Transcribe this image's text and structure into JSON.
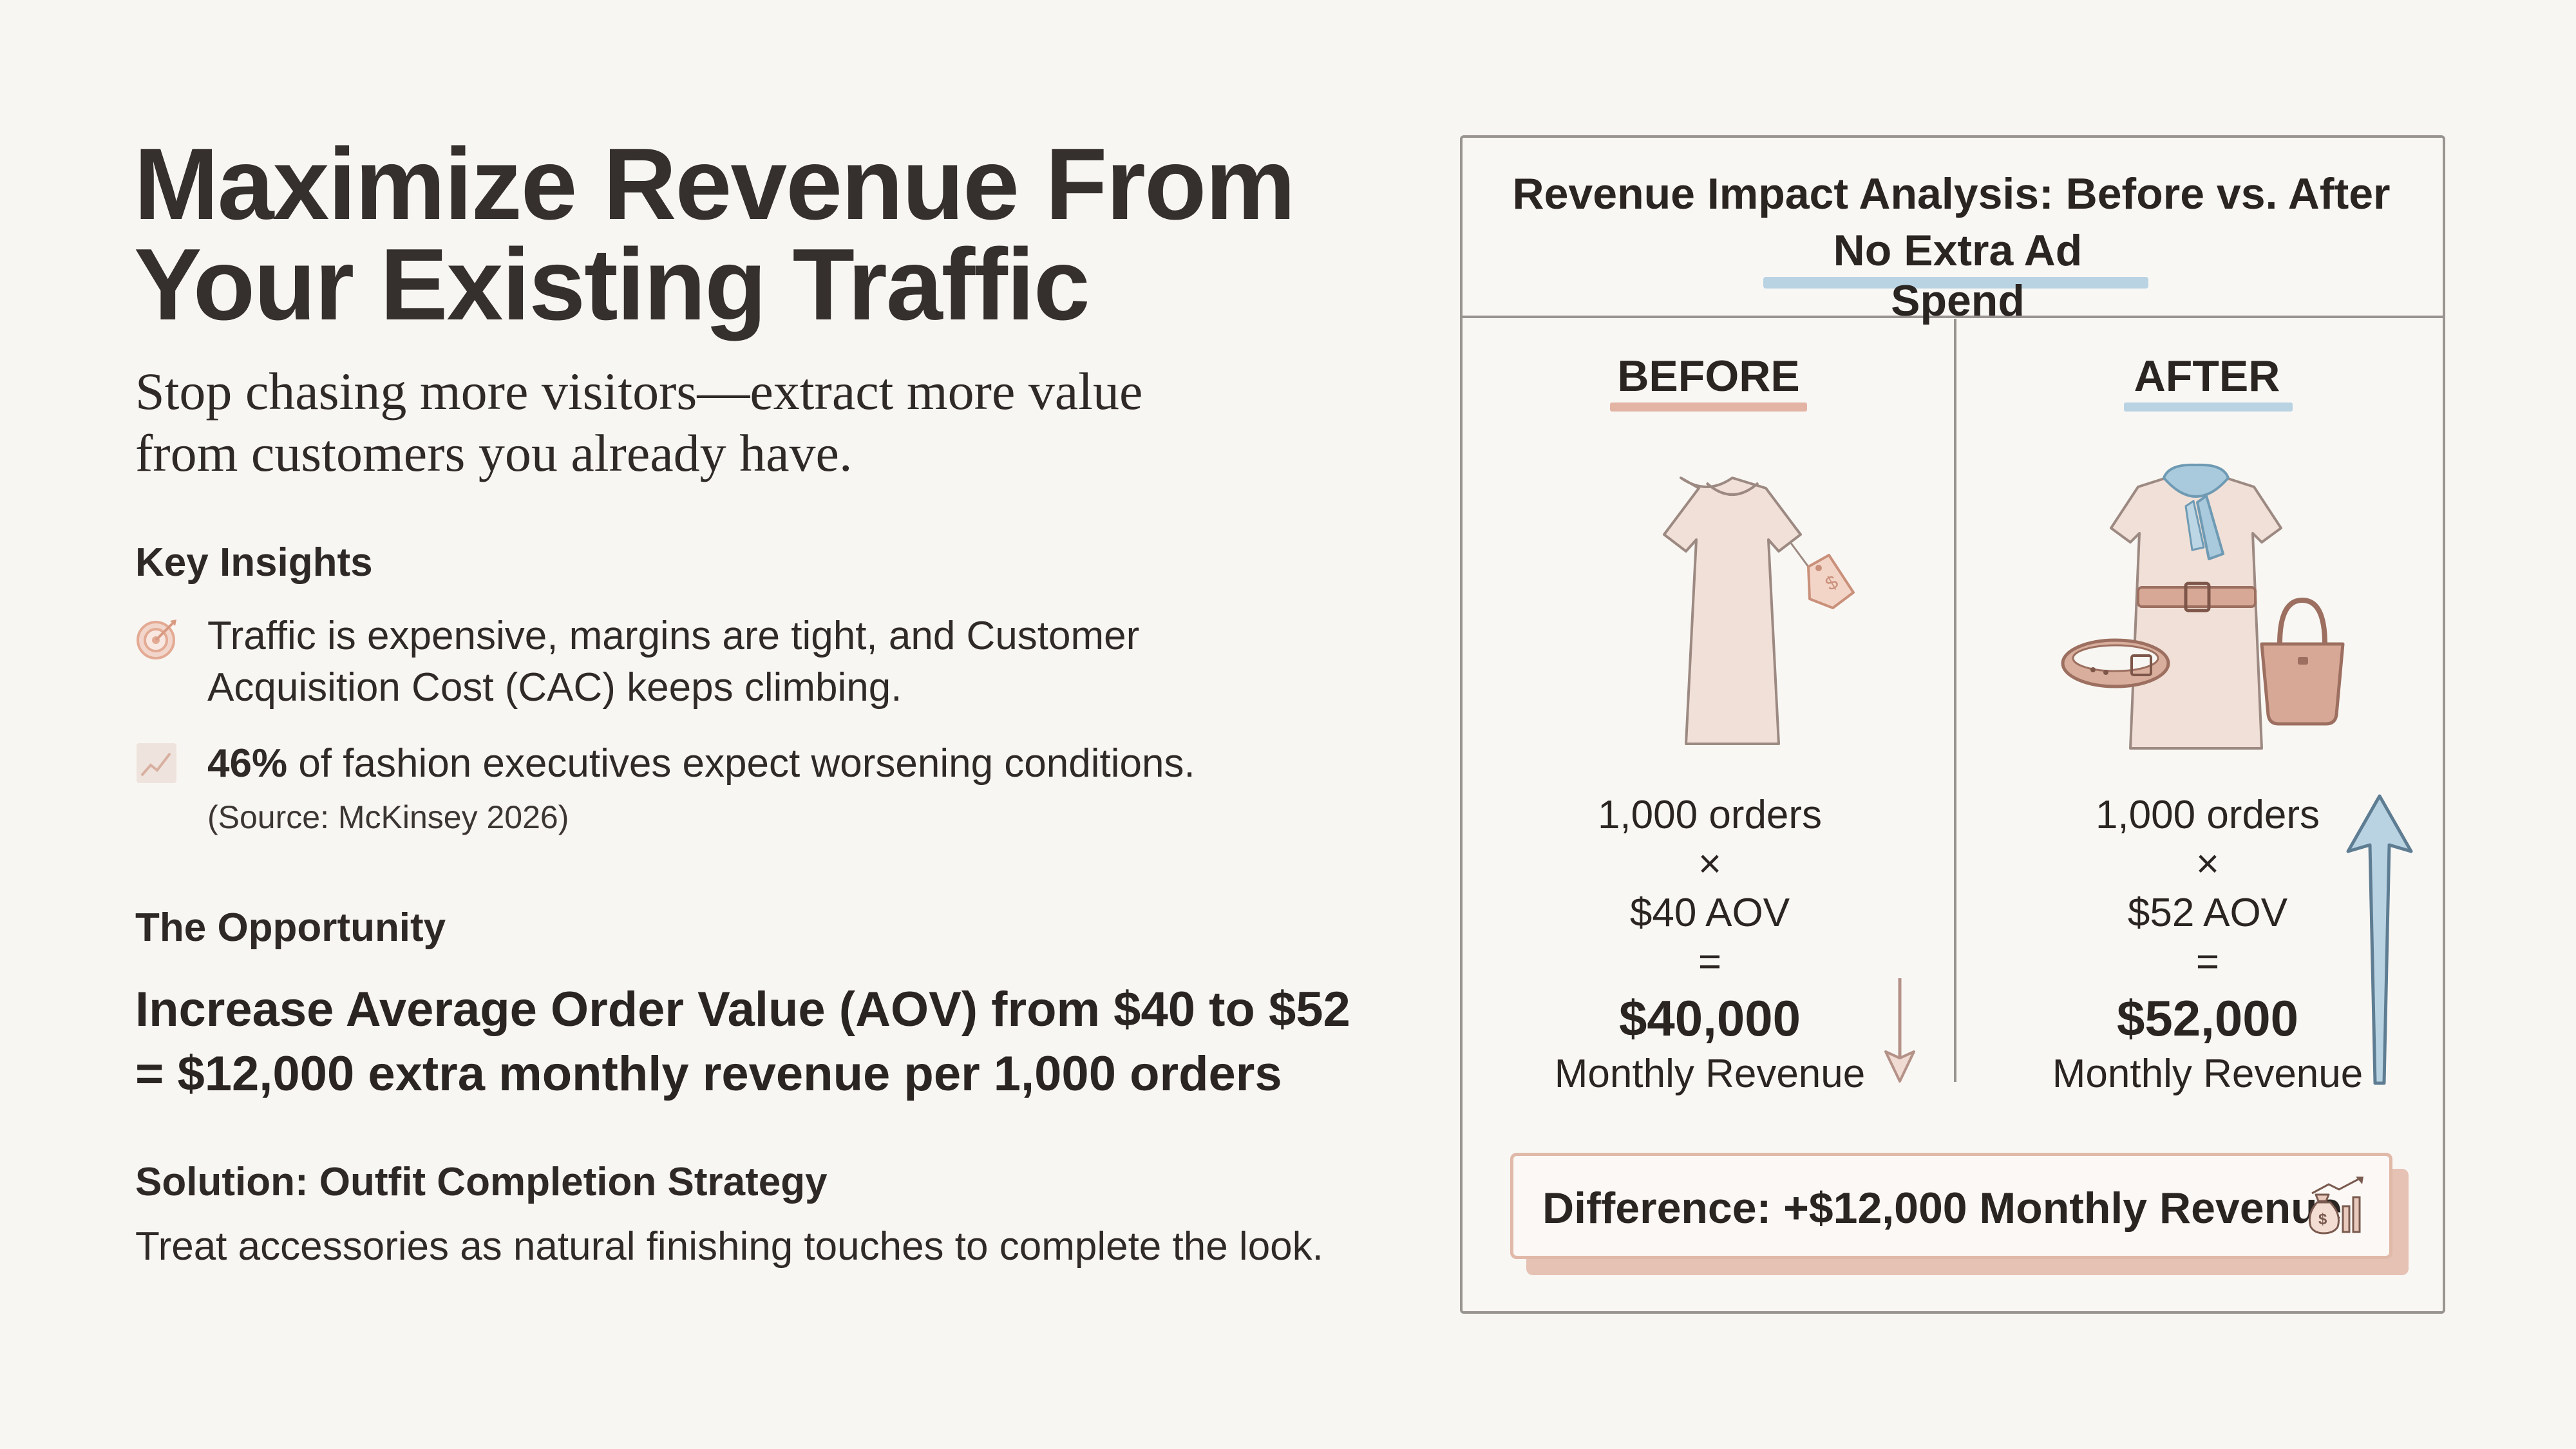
{
  "left": {
    "title_line1": "Maximize Revenue From",
    "title_line2": "Your Existing Traffic",
    "subtitle_line1": "Stop chasing more visitors—extract more value",
    "subtitle_line2": "from customers you already have.",
    "key_insights_heading": "Key Insights",
    "insight1_line1": "Traffic is expensive, margins are tight, and Customer",
    "insight1_line2": "Acquisition Cost (CAC) keeps climbing.",
    "insight2_stat": "46%",
    "insight2_rest": " of fashion executives expect worsening conditions.",
    "insight2_source": "(Source: McKinsey 2026)",
    "opportunity_heading": "The Opportunity",
    "opportunity_line1": "Increase Average Order Value (AOV) from $40 to $52",
    "opportunity_line2": "= $12,000 extra monthly revenue per 1,000 orders",
    "solution_heading": "Solution: Outfit Completion Strategy",
    "solution_text": "Treat accessories as natural finishing touches to complete the look."
  },
  "panel": {
    "title": "Revenue Impact Analysis: Before vs. After",
    "subtitle": "No Extra Ad Spend",
    "before": {
      "label": "BEFORE",
      "orders": "1,000 orders",
      "times": "×",
      "aov": "$40 AOV",
      "equals": "=",
      "revenue": "$40,000",
      "revenue_label": "Monthly Revenue"
    },
    "after": {
      "label": "AFTER",
      "orders": "1,000 orders",
      "times": "×",
      "aov": "$52 AOV",
      "equals": "=",
      "revenue": "$52,000",
      "revenue_label": "Monthly Revenue"
    },
    "difference": "Difference: +$12,000 Monthly Revenue"
  },
  "icons": {
    "insight1": "target-icon",
    "insight2": "trend-chart-icon",
    "before_illustration": "dress-with-price-tag-icon",
    "after_illustration": "dress-with-scarf-belt-handbag-icon",
    "difference": "money-bag-growth-icon"
  },
  "colors": {
    "accent_peach": "#e3b4a3",
    "accent_blue": "#b9d3e3",
    "dress_fill": "#f1e0d7"
  }
}
